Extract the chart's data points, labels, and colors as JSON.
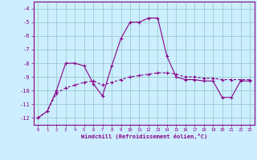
{
  "xlabel": "Windchill (Refroidissement éolien,°C)",
  "xlim": [
    -0.5,
    23.5
  ],
  "ylim": [
    -12.5,
    -3.5
  ],
  "yticks": [
    -12,
    -11,
    -10,
    -9,
    -8,
    -7,
    -6,
    -5,
    -4
  ],
  "xticks": [
    0,
    1,
    2,
    3,
    4,
    5,
    6,
    7,
    8,
    9,
    10,
    11,
    12,
    13,
    14,
    15,
    16,
    17,
    18,
    19,
    20,
    21,
    22,
    23
  ],
  "background_color": "#cceeff",
  "line_color": "#880088",
  "grid_color": "#99cccc",
  "series1_x": [
    0,
    1,
    2,
    3,
    4,
    5,
    6,
    7,
    8,
    9,
    10,
    11,
    12,
    13,
    14,
    15,
    16,
    17,
    18,
    19,
    20,
    21,
    22,
    23
  ],
  "series1_y": [
    -12.0,
    -11.5,
    -10.0,
    -8.0,
    -8.0,
    -8.2,
    -9.5,
    -10.4,
    -8.2,
    -6.2,
    -5.0,
    -5.0,
    -4.7,
    -4.7,
    -7.5,
    -9.0,
    -9.2,
    -9.2,
    -9.3,
    -9.3,
    -10.5,
    -10.5,
    -9.3,
    -9.3
  ],
  "series2_x": [
    0,
    1,
    2,
    3,
    4,
    5,
    6,
    7,
    8,
    9,
    10,
    11,
    12,
    13,
    14,
    15,
    16,
    17,
    18,
    19,
    20,
    21,
    22,
    23
  ],
  "series2_y": [
    -12.0,
    -11.5,
    -10.2,
    -9.8,
    -9.6,
    -9.4,
    -9.3,
    -9.6,
    -9.4,
    -9.2,
    -9.0,
    -8.9,
    -8.8,
    -8.7,
    -8.7,
    -8.8,
    -9.0,
    -9.0,
    -9.1,
    -9.1,
    -9.2,
    -9.2,
    -9.2,
    -9.2
  ]
}
